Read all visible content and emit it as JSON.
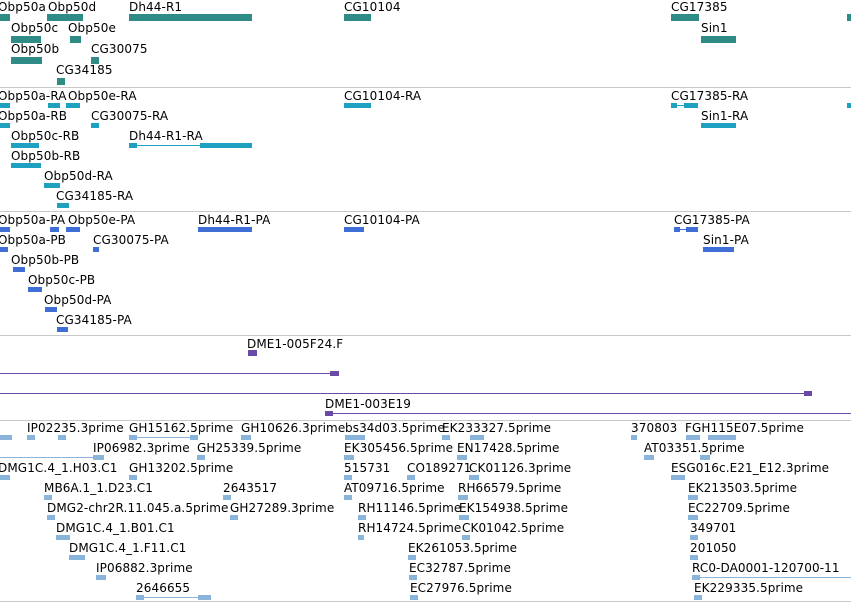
{
  "colors": {
    "gene": "#2e8b86",
    "transcript": "#1ea0c0",
    "protein": "#3f6fd6",
    "alignment": "#6a4aa6",
    "est": "#8ab4dc",
    "separator": "#c8c8c8"
  },
  "tracks": {
    "genes": {
      "labels": [
        "Obp50a",
        "Obp50d",
        "Dh44-R1",
        "CG10104",
        "CG17385",
        "Obp50c",
        "Obp50e",
        "Sin1",
        "Obp50b",
        "CG30075",
        "CG34185"
      ]
    },
    "transcripts": {
      "labels": [
        "Obp50a-RA",
        "Obp50e-RA",
        "CG10104-RA",
        "CG17385-RA",
        "Obp50a-RB",
        "CG30075-RA",
        "Sin1-RA",
        "Obp50c-RB",
        "Dh44-R1-RA",
        "Obp50b-RB",
        "Obp50d-RA",
        "CG34185-RA"
      ]
    },
    "proteins": {
      "labels": [
        "Obp50a-PA",
        "Obp50e-PA",
        "Dh44-R1-PA",
        "CG10104-PA",
        "CG17385-PA",
        "Obp50a-PB",
        "CG30075-PA",
        "Sin1-PA",
        "Obp50b-PB",
        "Obp50c-PB",
        "Obp50d-PA",
        "CG34185-PA"
      ]
    },
    "alignments": {
      "labels": [
        "DME1-005F24.F",
        "DME1-003E19"
      ]
    },
    "ests": {
      "labels": [
        "IP02235.3prime",
        "GH15162.5prime",
        "GH10626.3prime",
        "bs34d03.5prime",
        "EK233327.5prime",
        "370803",
        "FGH115E07.5prime",
        "IP06982.3prime",
        "GH25339.5prime",
        "EK305456.5prime",
        "EN17428.5prime",
        "AT03351.5prime",
        "DMG1C.4_1.H03.C1",
        "GH13202.5prime",
        "515731",
        "CO189271",
        "CK01126.3prime",
        "ESG016c.E21_E12.3prime",
        "MB6A.1_1.D23.C1",
        "2643517",
        "AT09716.5prime",
        "RH66579.5prime",
        "EK213503.5prime",
        "DMG2-chr2R.11.045.a.5prime",
        "GH27289.3prime",
        "RH11146.5prime",
        "EK154938.5prime",
        "EC22709.5prime",
        "DMG1C.4_1.B01.C1",
        "RH14724.5prime",
        "CK01042.5prime",
        "349701",
        "DMG1C.4_1.F11.C1",
        "EK261053.5prime",
        "201050",
        "IP06882.3prime",
        "EC32787.5prime",
        "RC0-DA0001-120700-11",
        "2646655",
        "EC27976.5prime",
        "EK229335.5prime"
      ]
    }
  }
}
